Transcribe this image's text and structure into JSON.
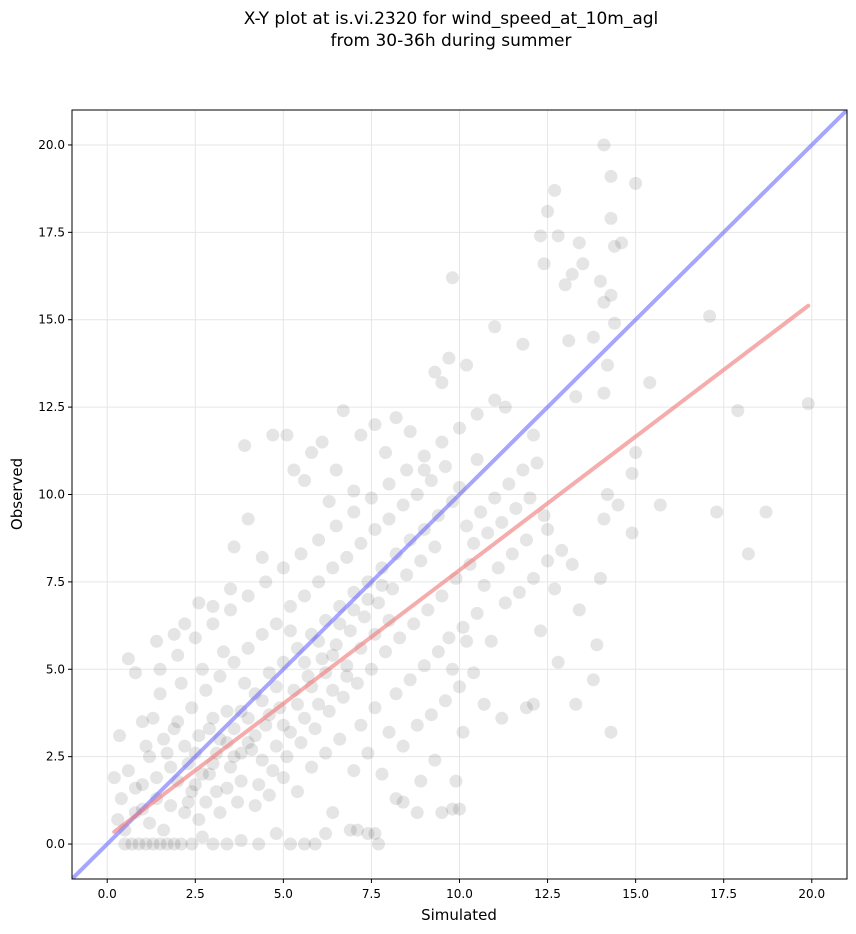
{
  "chart_data": {
    "type": "scatter",
    "title_line1": "X-Y plot at is.vi.2320 for wind_speed_at_10m_agl",
    "title_line2": "from 30-36h during summer",
    "xlabel": "Simulated",
    "ylabel": "Observed",
    "xlim": [
      -1.0,
      21.0
    ],
    "ylim": [
      -1.0,
      21.0
    ],
    "xticks": [
      "0.0",
      "2.5",
      "5.0",
      "7.5",
      "10.0",
      "12.5",
      "15.0",
      "17.5",
      "20.0"
    ],
    "yticks": [
      "0.0",
      "2.5",
      "5.0",
      "7.5",
      "10.0",
      "12.5",
      "15.0",
      "17.5",
      "20.0"
    ],
    "xtick_values": [
      0,
      2.5,
      5,
      7.5,
      10,
      12.5,
      15,
      17.5,
      20
    ],
    "ytick_values": [
      0,
      2.5,
      5,
      7.5,
      10,
      12.5,
      15,
      17.5,
      20
    ],
    "grid": true,
    "point_color": "#000000",
    "point_opacity": 0.1,
    "one_to_one_line": {
      "color": "#6b6bff",
      "x": [
        -1.0,
        21.0
      ],
      "y": [
        -1.0,
        21.0
      ]
    },
    "fit_line": {
      "color": "#f08080",
      "x": [
        0.2,
        19.9
      ],
      "y": [
        0.35,
        15.4
      ]
    },
    "points": [
      [
        0.2,
        1.9
      ],
      [
        0.35,
        3.1
      ],
      [
        0.6,
        5.3
      ],
      [
        0.8,
        4.9
      ],
      [
        1.0,
        3.5
      ],
      [
        1.4,
        5.8
      ],
      [
        1.9,
        6.0
      ],
      [
        2.2,
        6.3
      ],
      [
        2.6,
        6.9
      ],
      [
        3.0,
        6.8
      ],
      [
        3.5,
        7.3
      ],
      [
        3.6,
        8.5
      ],
      [
        3.9,
        11.4
      ],
      [
        4.0,
        9.3
      ],
      [
        4.4,
        8.2
      ],
      [
        4.7,
        11.7
      ],
      [
        5.1,
        11.7
      ],
      [
        5.3,
        10.7
      ],
      [
        5.6,
        10.4
      ],
      [
        5.8,
        11.2
      ],
      [
        6.1,
        11.5
      ],
      [
        6.3,
        9.8
      ],
      [
        6.5,
        10.7
      ],
      [
        6.7,
        12.4
      ],
      [
        7.0,
        10.1
      ],
      [
        7.2,
        11.7
      ],
      [
        7.6,
        12.0
      ],
      [
        7.9,
        11.2
      ],
      [
        8.2,
        12.2
      ],
      [
        8.6,
        11.8
      ],
      [
        9.0,
        10.7
      ],
      [
        9.3,
        13.5
      ],
      [
        9.5,
        13.2
      ],
      [
        9.7,
        13.9
      ],
      [
        9.8,
        16.2
      ],
      [
        10.2,
        13.7
      ],
      [
        10.5,
        11.0
      ],
      [
        11.0,
        14.8
      ],
      [
        11.3,
        12.5
      ],
      [
        11.8,
        14.3
      ],
      [
        12.1,
        11.7
      ],
      [
        12.3,
        17.4
      ],
      [
        12.4,
        16.6
      ],
      [
        12.5,
        18.1
      ],
      [
        12.7,
        18.7
      ],
      [
        12.8,
        17.4
      ],
      [
        13.0,
        16.0
      ],
      [
        13.2,
        16.3
      ],
      [
        13.4,
        17.2
      ],
      [
        13.5,
        16.6
      ],
      [
        13.1,
        14.4
      ],
      [
        13.3,
        12.8
      ],
      [
        13.8,
        14.5
      ],
      [
        14.0,
        16.1
      ],
      [
        14.1,
        15.5
      ],
      [
        14.1,
        20.0
      ],
      [
        14.3,
        19.1
      ],
      [
        14.3,
        17.9
      ],
      [
        14.4,
        17.1
      ],
      [
        14.6,
        17.2
      ],
      [
        14.3,
        15.7
      ],
      [
        14.4,
        14.9
      ],
      [
        14.2,
        13.7
      ],
      [
        14.1,
        12.9
      ],
      [
        15.0,
        18.9
      ],
      [
        15.4,
        13.2
      ],
      [
        15.0,
        11.2
      ],
      [
        14.9,
        10.6
      ],
      [
        15.7,
        9.7
      ],
      [
        17.1,
        15.1
      ],
      [
        17.3,
        9.5
      ],
      [
        17.9,
        12.4
      ],
      [
        18.2,
        8.3
      ],
      [
        18.7,
        9.5
      ],
      [
        19.9,
        12.6
      ],
      [
        14.2,
        10.0
      ],
      [
        14.5,
        9.7
      ],
      [
        14.1,
        9.3
      ],
      [
        14.9,
        8.9
      ],
      [
        14.0,
        7.6
      ],
      [
        13.9,
        5.7
      ],
      [
        13.8,
        4.7
      ],
      [
        14.3,
        3.2
      ],
      [
        13.3,
        4.0
      ],
      [
        13.4,
        6.7
      ],
      [
        13.2,
        8.0
      ],
      [
        12.8,
        5.2
      ],
      [
        12.5,
        8.1
      ],
      [
        12.1,
        4.0
      ],
      [
        11.9,
        3.9
      ],
      [
        11.2,
        3.6
      ],
      [
        10.7,
        4.0
      ],
      [
        10.1,
        3.2
      ],
      [
        10.0,
        1.0
      ],
      [
        9.8,
        1.0
      ],
      [
        9.9,
        1.8
      ],
      [
        9.5,
        0.9
      ],
      [
        9.3,
        2.4
      ],
      [
        8.9,
        1.8
      ],
      [
        8.8,
        0.9
      ],
      [
        8.4,
        1.2
      ],
      [
        8.2,
        1.3
      ],
      [
        7.6,
        0.3
      ],
      [
        7.4,
        0.3
      ],
      [
        7.7,
        0.0
      ],
      [
        7.1,
        0.4
      ],
      [
        6.9,
        0.4
      ],
      [
        6.4,
        0.9
      ],
      [
        6.2,
        0.3
      ],
      [
        5.9,
        0.0
      ],
      [
        5.6,
        0.0
      ],
      [
        5.2,
        0.0
      ],
      [
        4.8,
        0.3
      ],
      [
        4.3,
        0.0
      ],
      [
        3.8,
        0.1
      ],
      [
        3.4,
        0.0
      ],
      [
        3.0,
        0.0
      ],
      [
        2.7,
        0.2
      ],
      [
        2.4,
        0.0
      ],
      [
        2.1,
        0.0
      ],
      [
        1.9,
        0.0
      ],
      [
        1.7,
        0.0
      ],
      [
        1.5,
        0.0
      ],
      [
        1.3,
        0.0
      ],
      [
        1.1,
        0.0
      ],
      [
        0.9,
        0.0
      ],
      [
        0.7,
        0.0
      ],
      [
        0.5,
        0.0
      ],
      [
        0.3,
        0.7
      ],
      [
        0.4,
        1.3
      ],
      [
        0.6,
        2.1
      ],
      [
        0.8,
        1.6
      ],
      [
        1.0,
        1.0
      ],
      [
        1.2,
        2.5
      ],
      [
        1.4,
        1.9
      ],
      [
        1.6,
        3.0
      ],
      [
        1.8,
        2.2
      ],
      [
        2.0,
        3.5
      ],
      [
        2.2,
        2.8
      ],
      [
        2.4,
        3.9
      ],
      [
        2.6,
        3.1
      ],
      [
        2.8,
        4.4
      ],
      [
        3.0,
        3.6
      ],
      [
        3.2,
        4.8
      ],
      [
        3.4,
        2.9
      ],
      [
        3.6,
        5.2
      ],
      [
        3.8,
        3.8
      ],
      [
        4.0,
        5.6
      ],
      [
        4.2,
        4.3
      ],
      [
        4.4,
        6.0
      ],
      [
        4.6,
        4.9
      ],
      [
        4.8,
        6.3
      ],
      [
        5.0,
        5.2
      ],
      [
        5.2,
        6.8
      ],
      [
        5.4,
        5.6
      ],
      [
        5.6,
        7.1
      ],
      [
        5.8,
        6.0
      ],
      [
        6.0,
        7.5
      ],
      [
        6.2,
        6.4
      ],
      [
        6.4,
        7.9
      ],
      [
        6.6,
        6.8
      ],
      [
        6.8,
        8.2
      ],
      [
        7.0,
        7.2
      ],
      [
        7.2,
        8.6
      ],
      [
        7.4,
        7.5
      ],
      [
        7.6,
        9.0
      ],
      [
        7.8,
        7.9
      ],
      [
        8.0,
        9.3
      ],
      [
        8.2,
        8.3
      ],
      [
        8.4,
        9.7
      ],
      [
        8.6,
        8.7
      ],
      [
        8.8,
        10.0
      ],
      [
        9.0,
        9.0
      ],
      [
        9.2,
        10.4
      ],
      [
        9.4,
        9.4
      ],
      [
        9.6,
        10.8
      ],
      [
        9.8,
        9.8
      ],
      [
        10.0,
        10.2
      ],
      [
        10.2,
        9.1
      ],
      [
        10.4,
        8.6
      ],
      [
        10.6,
        9.5
      ],
      [
        10.8,
        8.9
      ],
      [
        11.0,
        9.9
      ],
      [
        11.2,
        9.2
      ],
      [
        11.4,
        10.3
      ],
      [
        11.6,
        9.6
      ],
      [
        11.8,
        10.7
      ],
      [
        12.0,
        9.9
      ],
      [
        12.2,
        10.9
      ],
      [
        12.4,
        9.4
      ],
      [
        1.1,
        2.8
      ],
      [
        1.3,
        3.6
      ],
      [
        1.5,
        4.3
      ],
      [
        1.7,
        2.6
      ],
      [
        1.9,
        3.3
      ],
      [
        2.1,
        4.6
      ],
      [
        2.3,
        2.3
      ],
      [
        2.5,
        1.7
      ],
      [
        2.7,
        5.0
      ],
      [
        2.9,
        2.0
      ],
      [
        3.1,
        1.5
      ],
      [
        3.3,
        5.5
      ],
      [
        3.5,
        2.2
      ],
      [
        3.7,
        1.2
      ],
      [
        3.9,
        4.6
      ],
      [
        4.1,
        2.7
      ],
      [
        4.3,
        1.7
      ],
      [
        4.5,
        3.4
      ],
      [
        4.7,
        2.1
      ],
      [
        4.9,
        3.9
      ],
      [
        5.1,
        2.5
      ],
      [
        5.3,
        4.4
      ],
      [
        5.5,
        2.9
      ],
      [
        5.7,
        4.8
      ],
      [
        5.9,
        3.3
      ],
      [
        6.1,
        5.3
      ],
      [
        6.3,
        3.8
      ],
      [
        6.5,
        5.7
      ],
      [
        6.7,
        4.2
      ],
      [
        6.9,
        6.1
      ],
      [
        7.1,
        4.6
      ],
      [
        7.3,
        6.5
      ],
      [
        7.5,
        5.0
      ],
      [
        7.7,
        6.9
      ],
      [
        7.9,
        5.5
      ],
      [
        8.1,
        7.3
      ],
      [
        8.3,
        5.9
      ],
      [
        8.5,
        7.7
      ],
      [
        8.7,
        6.3
      ],
      [
        8.9,
        8.1
      ],
      [
        9.1,
        6.7
      ],
      [
        9.3,
        8.5
      ],
      [
        9.5,
        7.1
      ],
      [
        9.7,
        5.9
      ],
      [
        9.9,
        7.6
      ],
      [
        10.1,
        6.2
      ],
      [
        10.3,
        8.0
      ],
      [
        10.5,
        6.6
      ],
      [
        10.7,
        7.4
      ],
      [
        10.9,
        5.8
      ],
      [
        11.1,
        7.9
      ],
      [
        11.3,
        6.9
      ],
      [
        11.5,
        8.3
      ],
      [
        11.7,
        7.2
      ],
      [
        11.9,
        8.7
      ],
      [
        12.1,
        7.6
      ],
      [
        12.3,
        6.1
      ],
      [
        12.5,
        9.0
      ],
      [
        12.7,
        7.3
      ],
      [
        12.9,
        8.4
      ],
      [
        0.5,
        0.4
      ],
      [
        0.8,
        0.9
      ],
      [
        1.0,
        1.7
      ],
      [
        1.2,
        0.6
      ],
      [
        1.4,
        1.3
      ],
      [
        1.6,
        0.4
      ],
      [
        1.8,
        1.1
      ],
      [
        2.0,
        1.8
      ],
      [
        2.2,
        0.9
      ],
      [
        2.4,
        1.5
      ],
      [
        2.6,
        0.7
      ],
      [
        2.8,
        1.2
      ],
      [
        3.0,
        2.3
      ],
      [
        3.2,
        0.9
      ],
      [
        3.4,
        1.6
      ],
      [
        3.6,
        2.5
      ],
      [
        3.8,
        1.8
      ],
      [
        4.0,
        2.9
      ],
      [
        4.2,
        1.1
      ],
      [
        4.4,
        2.4
      ],
      [
        4.6,
        1.4
      ],
      [
        4.8,
        2.8
      ],
      [
        5.0,
        1.9
      ],
      [
        5.2,
        3.2
      ],
      [
        5.4,
        1.5
      ],
      [
        5.6,
        3.6
      ],
      [
        5.8,
        2.2
      ],
      [
        6.0,
        4.0
      ],
      [
        6.2,
        2.6
      ],
      [
        6.4,
        4.4
      ],
      [
        6.6,
        3.0
      ],
      [
        6.8,
        4.8
      ],
      [
        7.0,
        2.1
      ],
      [
        7.2,
        3.4
      ],
      [
        7.4,
        2.6
      ],
      [
        7.6,
        3.9
      ],
      [
        7.8,
        2.0
      ],
      [
        8.0,
        3.2
      ],
      [
        8.2,
        4.3
      ],
      [
        8.4,
        2.8
      ],
      [
        8.6,
        4.7
      ],
      [
        8.8,
        3.4
      ],
      [
        9.0,
        5.1
      ],
      [
        9.2,
        3.7
      ],
      [
        9.4,
        5.5
      ],
      [
        9.6,
        4.1
      ],
      [
        9.8,
        5.0
      ],
      [
        10.0,
        4.5
      ],
      [
        10.2,
        5.8
      ],
      [
        10.4,
        4.9
      ],
      [
        1.5,
        5.0
      ],
      [
        2.0,
        5.4
      ],
      [
        2.5,
        5.9
      ],
      [
        3.0,
        6.3
      ],
      [
        3.5,
        6.7
      ],
      [
        4.0,
        7.1
      ],
      [
        4.5,
        7.5
      ],
      [
        5.0,
        7.9
      ],
      [
        5.5,
        8.3
      ],
      [
        6.0,
        8.7
      ],
      [
        6.5,
        9.1
      ],
      [
        7.0,
        9.5
      ],
      [
        7.5,
        9.9
      ],
      [
        8.0,
        10.3
      ],
      [
        8.5,
        10.7
      ],
      [
        9.0,
        11.1
      ],
      [
        9.5,
        11.5
      ],
      [
        10.0,
        11.9
      ],
      [
        10.5,
        12.3
      ],
      [
        11.0,
        12.7
      ],
      [
        5.2,
        6.1
      ],
      [
        5.4,
        4.0
      ],
      [
        5.6,
        5.2
      ],
      [
        5.8,
        4.5
      ],
      [
        6.0,
        5.8
      ],
      [
        6.2,
        4.9
      ],
      [
        6.4,
        5.4
      ],
      [
        6.6,
        6.3
      ],
      [
        6.8,
        5.1
      ],
      [
        7.0,
        6.7
      ],
      [
        7.2,
        5.6
      ],
      [
        7.4,
        7.0
      ],
      [
        7.6,
        6.0
      ],
      [
        7.8,
        7.4
      ],
      [
        8.0,
        6.4
      ],
      [
        3.2,
        3.0
      ],
      [
        3.4,
        3.8
      ],
      [
        3.6,
        3.3
      ],
      [
        3.8,
        2.6
      ],
      [
        4.0,
        3.6
      ],
      [
        4.2,
        3.1
      ],
      [
        4.4,
        4.1
      ],
      [
        4.6,
        3.7
      ],
      [
        4.8,
        4.5
      ],
      [
        5.0,
        3.4
      ],
      [
        2.3,
        1.2
      ],
      [
        2.5,
        2.6
      ],
      [
        2.7,
        2.0
      ],
      [
        2.9,
        3.3
      ],
      [
        3.1,
        2.6
      ]
    ]
  }
}
